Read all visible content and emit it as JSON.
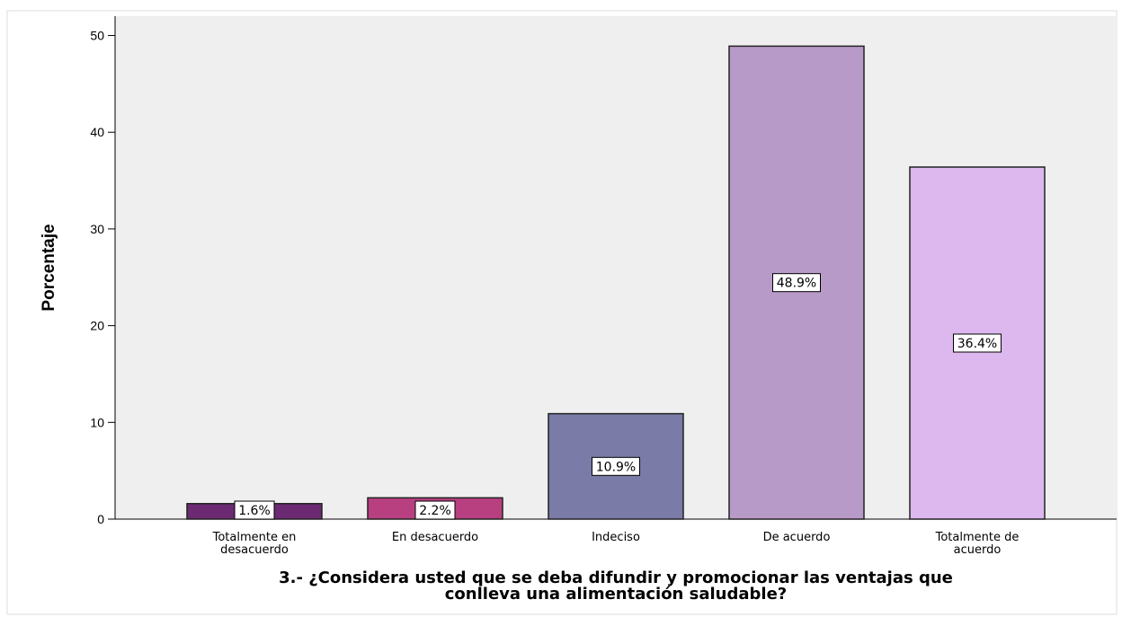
{
  "chart_data": {
    "type": "bar",
    "categories": [
      [
        "Totalmente en",
        "desacuerdo"
      ],
      [
        "En desacuerdo"
      ],
      [
        "Indeciso"
      ],
      [
        "De acuerdo"
      ],
      [
        "Totalmente de",
        "acuerdo"
      ]
    ],
    "values": [
      1.6,
      2.2,
      10.9,
      48.9,
      36.4
    ],
    "data_labels": [
      "1.6%",
      "2.2%",
      "10.9%",
      "48.9%",
      "36.4%"
    ],
    "colors": [
      "#6b2a72",
      "#b84080",
      "#7a7ba6",
      "#b89ac8",
      "#dcb8ee"
    ],
    "ylabel": "Porcentaje",
    "xlabel": [
      "3.- ¿Considera usted que se deba difundir y promocionar las ventajas que",
      "conlleva una alimentación saludable?"
    ],
    "ylim": [
      0,
      52
    ],
    "yticks": [
      0,
      10,
      20,
      30,
      40,
      50
    ],
    "grid": false,
    "legend": "none",
    "plot_background": "#efefef"
  }
}
